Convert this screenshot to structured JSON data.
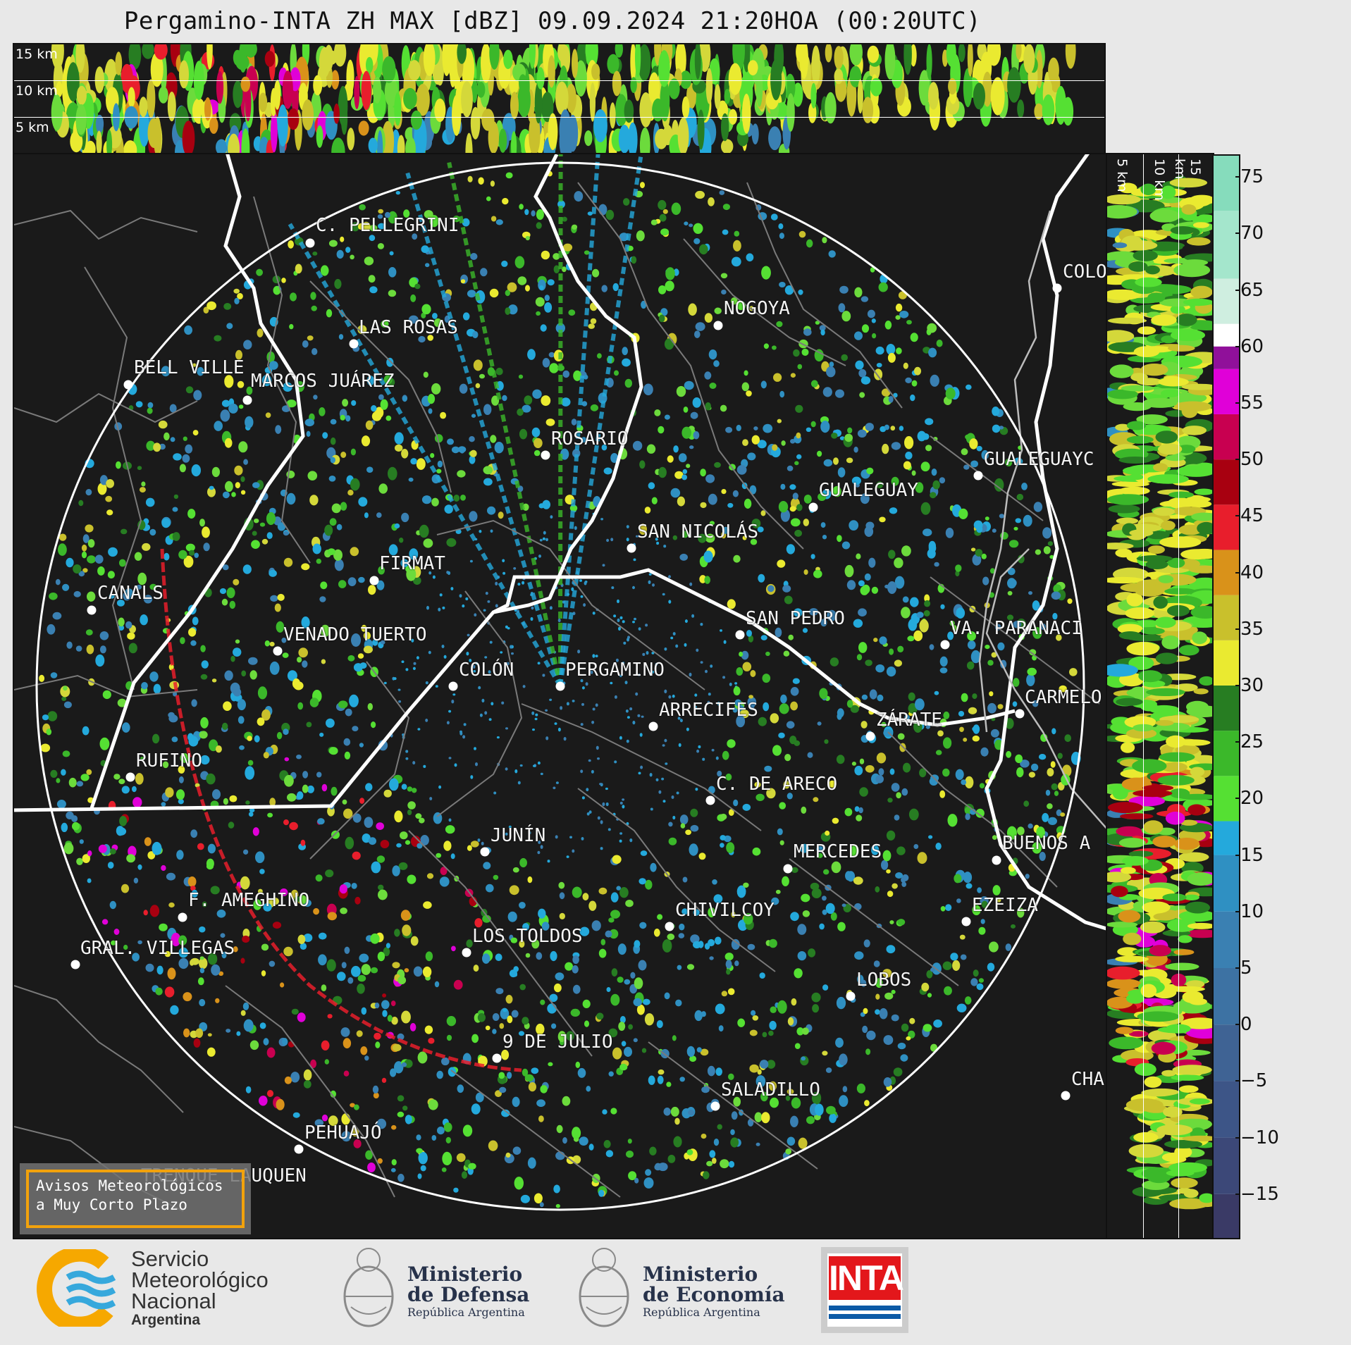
{
  "title": "Pergamino-INTA ZH MAX [dBZ] 09.09.2024 21:20HOA (00:20UTC)",
  "top_panel": {
    "km_labels": [
      "15 km",
      "10 km",
      "5 km"
    ]
  },
  "side_panel": {
    "km_labels": [
      "5 km",
      "10 km",
      "15 km"
    ]
  },
  "colorbar": {
    "ticks": [
      "75",
      "70",
      "65",
      "60",
      "55",
      "50",
      "45",
      "40",
      "35",
      "30",
      "25",
      "20",
      "15",
      "10",
      "5",
      "0",
      "−5",
      "−10",
      "−15"
    ],
    "tick_values": [
      75,
      70,
      65,
      60,
      55,
      50,
      45,
      40,
      35,
      30,
      25,
      20,
      15,
      10,
      5,
      0,
      -5,
      -10,
      -15
    ],
    "range": [
      -19,
      77
    ],
    "stops": [
      {
        "from": -19,
        "to": -15,
        "color": "#3a3a66"
      },
      {
        "from": -15,
        "to": -10,
        "color": "#3c4878"
      },
      {
        "from": -10,
        "to": -5,
        "color": "#3d5587"
      },
      {
        "from": -5,
        "to": 0,
        "color": "#3f6394"
      },
      {
        "from": 0,
        "to": 5,
        "color": "#3d72a3"
      },
      {
        "from": 5,
        "to": 10,
        "color": "#3a80b2"
      },
      {
        "from": 10,
        "to": 15,
        "color": "#2f90c2"
      },
      {
        "from": 15,
        "to": 18,
        "color": "#24a9dc"
      },
      {
        "from": 18,
        "to": 22,
        "color": "#55e033"
      },
      {
        "from": 22,
        "to": 26,
        "color": "#3bb82a"
      },
      {
        "from": 26,
        "to": 30,
        "color": "#277d22"
      },
      {
        "from": 30,
        "to": 34,
        "color": "#eaea30"
      },
      {
        "from": 34,
        "to": 38,
        "color": "#c9c02c"
      },
      {
        "from": 38,
        "to": 42,
        "color": "#d9921a"
      },
      {
        "from": 42,
        "to": 46,
        "color": "#e81e2c"
      },
      {
        "from": 46,
        "to": 50,
        "color": "#a80010"
      },
      {
        "from": 50,
        "to": 54,
        "color": "#c80050"
      },
      {
        "from": 54,
        "to": 58,
        "color": "#e000d8"
      },
      {
        "from": 58,
        "to": 60,
        "color": "#90109a"
      },
      {
        "from": 60,
        "to": 62,
        "color": "#ffffff"
      },
      {
        "from": 62,
        "to": 66,
        "color": "#cfeee0"
      },
      {
        "from": 66,
        "to": 72,
        "color": "#a4e6cc"
      },
      {
        "from": 72,
        "to": 77,
        "color": "#86dcbc"
      }
    ]
  },
  "cities": [
    {
      "name": "C. PELLEGRINI"
    },
    {
      "name": "LAS ROSAS"
    },
    {
      "name": "BELL VILLE"
    },
    {
      "name": "MARCOS JUÁREZ"
    },
    {
      "name": "NOGOYA"
    },
    {
      "name": "COLO"
    },
    {
      "name": "ROSARIO"
    },
    {
      "name": "GUALEGUAYC"
    },
    {
      "name": "GUALEGUAY"
    },
    {
      "name": "SAN NICOLÁS"
    },
    {
      "name": "FIRMAT"
    },
    {
      "name": "CANALS"
    },
    {
      "name": "VENADO TUERTO"
    },
    {
      "name": "SAN PEDRO"
    },
    {
      "name": "VA. PARANACI"
    },
    {
      "name": "COLÓN"
    },
    {
      "name": "PERGAMINO"
    },
    {
      "name": "CARMELO"
    },
    {
      "name": "ARRECIFES"
    },
    {
      "name": "ZÁRATE"
    },
    {
      "name": "RUFINO"
    },
    {
      "name": "C. DE ARECO"
    },
    {
      "name": "JUNÍN"
    },
    {
      "name": "MERCEDES"
    },
    {
      "name": "BUENOS A"
    },
    {
      "name": "F. AMEGHINO"
    },
    {
      "name": "EZEIZA"
    },
    {
      "name": "CHIVILCOY"
    },
    {
      "name": "GRAL. VILLEGAS"
    },
    {
      "name": "LOS TOLDOS"
    },
    {
      "name": "LOBOS"
    },
    {
      "name": "9 DE JULIO"
    },
    {
      "name": "CHA"
    },
    {
      "name": "SALADILLO"
    },
    {
      "name": "PEHUAJÓ"
    },
    {
      "name": "TRENQUE LAUQUEN"
    }
  ],
  "aviso": {
    "line1": "Avisos Meteorológicos",
    "line2": "a Muy Corto Plazo"
  },
  "logos": {
    "smn": {
      "line1": "Servicio",
      "line2": "Meteorológico",
      "line3": "Nacional",
      "line4": "Argentina"
    },
    "defensa": {
      "line1": "Ministerio",
      "line2": "de Defensa",
      "line3": "República Argentina"
    },
    "economia": {
      "line1": "Ministerio",
      "line2": "de Economía",
      "line3": "República Argentina"
    },
    "inta": {
      "text": "INTA"
    }
  },
  "colors": {
    "background": "#e8e8e8",
    "panel": "#1a1a1a",
    "smn_orange": "#f6a800",
    "smn_blue": "#36a8dc",
    "inta_red": "#e3171b",
    "inta_blue": "#0c5aa6"
  }
}
